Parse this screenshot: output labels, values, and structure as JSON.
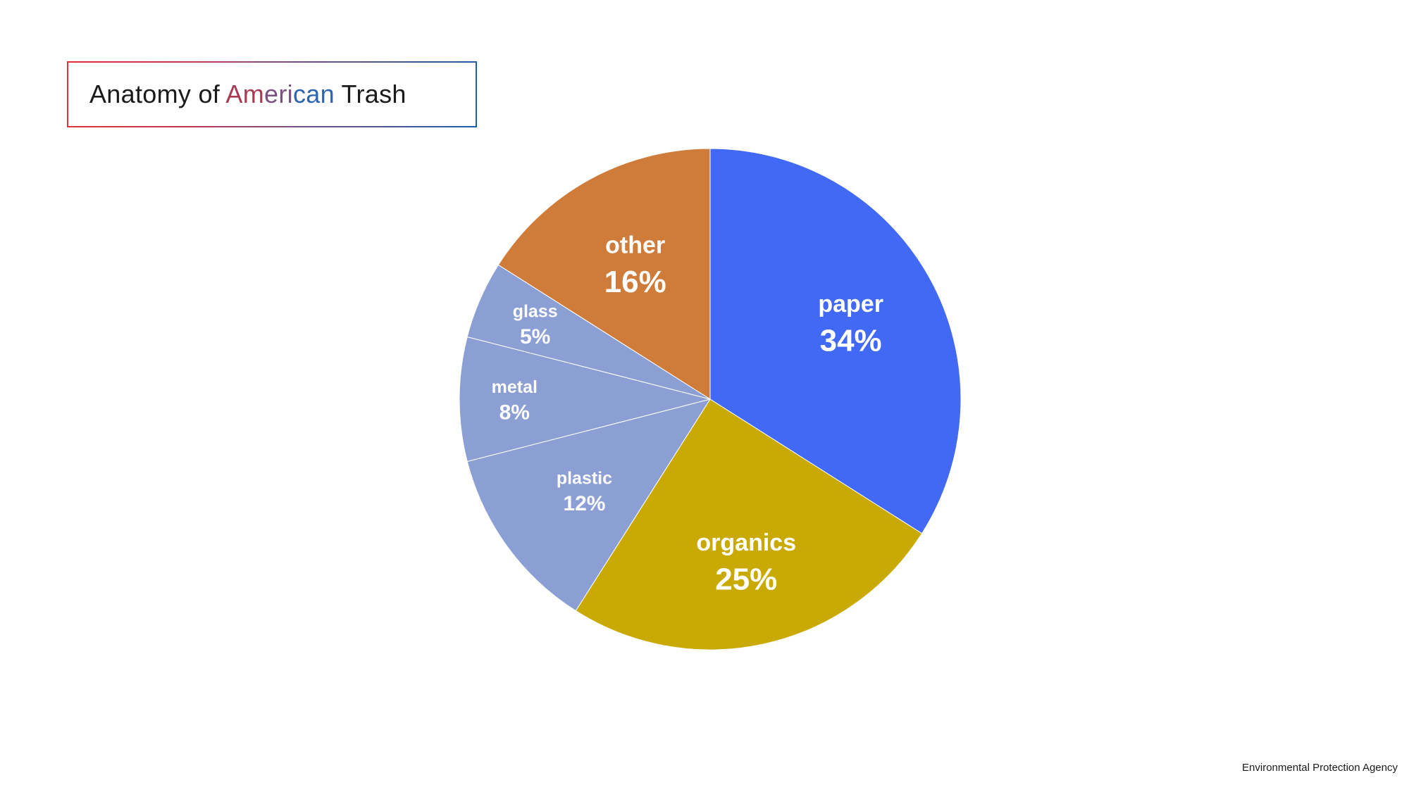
{
  "title": {
    "prefix": "Anatomy of ",
    "highlight_1": "Am",
    "highlight_2": "eri",
    "highlight_3": "can",
    "suffix": " Trash"
  },
  "source": "Environmental Protection Agency",
  "chart_data": {
    "type": "pie",
    "title": "Anatomy of American Trash",
    "start_angle_deg": 0,
    "direction": "clockwise",
    "slices": [
      {
        "label": "paper",
        "value": 34,
        "value_label": "34%",
        "color": "#4269f5"
      },
      {
        "label": "organics",
        "value": 25,
        "value_label": "25%",
        "color": "#c9a903"
      },
      {
        "label": "plastic",
        "value": 12,
        "value_label": "12%",
        "color": "#8b9fd4"
      },
      {
        "label": "metal",
        "value": 8,
        "value_label": "8%",
        "color": "#8b9fd4"
      },
      {
        "label": "glass",
        "value": 5,
        "value_label": "5%",
        "color": "#8b9fd4"
      },
      {
        "label": "other",
        "value": 16,
        "value_label": "16%",
        "color": "#cf7b3a"
      }
    ]
  }
}
